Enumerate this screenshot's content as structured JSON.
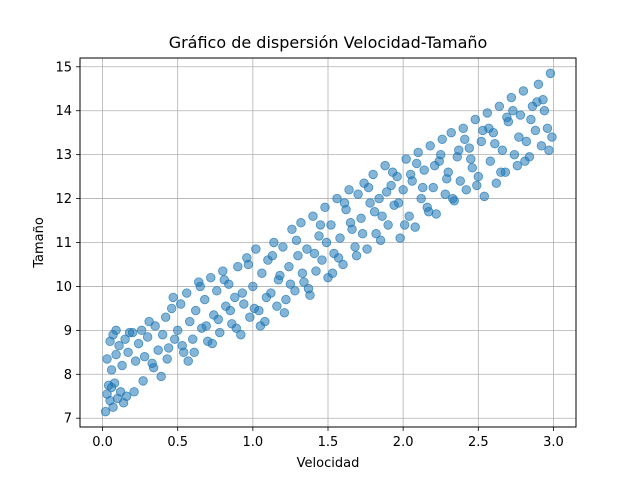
{
  "chart_data": {
    "type": "scatter",
    "title": "Gráfico de dispersión Velocidad-Tamaño",
    "xlabel": "Velocidad",
    "ylabel": "Tamaño",
    "xlim": [
      -0.15,
      3.15
    ],
    "ylim": [
      6.8,
      15.2
    ],
    "xticks": [
      0.0,
      0.5,
      1.0,
      1.5,
      2.0,
      2.5,
      3.0
    ],
    "xtick_labels": [
      "0.0",
      "0.5",
      "1.0",
      "1.5",
      "2.0",
      "2.5",
      "3.0"
    ],
    "yticks": [
      7,
      8,
      9,
      10,
      11,
      12,
      13,
      14,
      15
    ],
    "ytick_labels": [
      "7",
      "8",
      "9",
      "10",
      "11",
      "12",
      "13",
      "14",
      "15"
    ],
    "grid": true,
    "marker_color": "#1f77b4",
    "marker_alpha": 0.55,
    "series": [
      {
        "points": [
          [
            0.02,
            7.15
          ],
          [
            0.03,
            7.55
          ],
          [
            0.04,
            7.75
          ],
          [
            0.05,
            7.4
          ],
          [
            0.06,
            7.7
          ],
          [
            0.07,
            7.25
          ],
          [
            0.08,
            7.8
          ],
          [
            0.1,
            7.45
          ],
          [
            0.12,
            7.6
          ],
          [
            0.14,
            7.35
          ],
          [
            0.16,
            7.5
          ],
          [
            0.03,
            8.35
          ],
          [
            0.05,
            8.75
          ],
          [
            0.07,
            8.9
          ],
          [
            0.09,
            8.45
          ],
          [
            0.11,
            8.65
          ],
          [
            0.13,
            8.2
          ],
          [
            0.15,
            8.8
          ],
          [
            0.17,
            8.5
          ],
          [
            0.2,
            8.95
          ],
          [
            0.22,
            8.3
          ],
          [
            0.24,
            8.7
          ],
          [
            0.26,
            9.0
          ],
          [
            0.28,
            8.4
          ],
          [
            0.3,
            8.85
          ],
          [
            0.33,
            8.25
          ],
          [
            0.35,
            9.1
          ],
          [
            0.37,
            8.55
          ],
          [
            0.4,
            8.9
          ],
          [
            0.42,
            9.3
          ],
          [
            0.44,
            8.6
          ],
          [
            0.46,
            9.5
          ],
          [
            0.48,
            8.8
          ],
          [
            0.5,
            9.0
          ],
          [
            0.52,
            9.6
          ],
          [
            0.54,
            8.5
          ],
          [
            0.56,
            9.85
          ],
          [
            0.58,
            9.2
          ],
          [
            0.6,
            8.8
          ],
          [
            0.62,
            9.45
          ],
          [
            0.64,
            10.1
          ],
          [
            0.66,
            9.05
          ],
          [
            0.68,
            9.7
          ],
          [
            0.7,
            8.75
          ],
          [
            0.72,
            10.2
          ],
          [
            0.74,
            9.35
          ],
          [
            0.76,
            9.9
          ],
          [
            0.78,
            8.95
          ],
          [
            0.8,
            10.35
          ],
          [
            0.82,
            9.55
          ],
          [
            0.84,
            10.05
          ],
          [
            0.86,
            9.15
          ],
          [
            0.88,
            9.75
          ],
          [
            0.9,
            10.45
          ],
          [
            0.92,
            8.9
          ],
          [
            0.94,
            9.6
          ],
          [
            0.96,
            10.65
          ],
          [
            0.98,
            9.3
          ],
          [
            1.0,
            10.0
          ],
          [
            1.02,
            10.85
          ],
          [
            1.04,
            9.45
          ],
          [
            1.06,
            10.3
          ],
          [
            1.08,
            9.2
          ],
          [
            1.1,
            10.6
          ],
          [
            1.12,
            9.85
          ],
          [
            1.14,
            11.0
          ],
          [
            1.16,
            9.55
          ],
          [
            1.18,
            10.25
          ],
          [
            1.2,
            10.9
          ],
          [
            1.22,
            9.7
          ],
          [
            1.24,
            10.45
          ],
          [
            1.26,
            11.3
          ],
          [
            1.28,
            9.9
          ],
          [
            1.3,
            10.7
          ],
          [
            1.32,
            11.45
          ],
          [
            1.34,
            10.1
          ],
          [
            1.36,
            10.85
          ],
          [
            1.38,
            9.8
          ],
          [
            1.4,
            11.6
          ],
          [
            1.42,
            10.35
          ],
          [
            1.44,
            11.15
          ],
          [
            1.46,
            10.6
          ],
          [
            1.48,
            11.8
          ],
          [
            1.5,
            10.2
          ],
          [
            1.52,
            11.4
          ],
          [
            1.54,
            10.75
          ],
          [
            1.56,
            12.0
          ],
          [
            1.58,
            11.1
          ],
          [
            1.6,
            10.5
          ],
          [
            1.62,
            11.75
          ],
          [
            1.64,
            12.2
          ],
          [
            1.66,
            11.3
          ],
          [
            1.68,
            10.9
          ],
          [
            1.7,
            12.1
          ],
          [
            1.72,
            11.55
          ],
          [
            1.74,
            12.35
          ],
          [
            1.76,
            10.85
          ],
          [
            1.78,
            11.9
          ],
          [
            1.8,
            12.55
          ],
          [
            1.82,
            11.2
          ],
          [
            1.84,
            12.0
          ],
          [
            1.86,
            11.6
          ],
          [
            1.88,
            12.75
          ],
          [
            1.9,
            11.4
          ],
          [
            1.92,
            12.3
          ],
          [
            1.94,
            11.85
          ],
          [
            1.96,
            12.5
          ],
          [
            1.98,
            11.1
          ],
          [
            2.0,
            12.2
          ],
          [
            2.02,
            12.9
          ],
          [
            2.04,
            11.6
          ],
          [
            2.06,
            12.4
          ],
          [
            2.08,
            11.35
          ],
          [
            2.1,
            13.05
          ],
          [
            2.12,
            12.0
          ],
          [
            2.14,
            12.65
          ],
          [
            2.16,
            11.8
          ],
          [
            2.18,
            13.2
          ],
          [
            2.2,
            12.25
          ],
          [
            2.22,
            11.65
          ],
          [
            2.24,
            12.85
          ],
          [
            2.26,
            13.35
          ],
          [
            2.28,
            12.1
          ],
          [
            2.3,
            12.6
          ],
          [
            2.32,
            13.5
          ],
          [
            2.34,
            11.95
          ],
          [
            2.36,
            12.95
          ],
          [
            2.38,
            12.4
          ],
          [
            2.4,
            13.6
          ],
          [
            2.42,
            12.2
          ],
          [
            2.44,
            13.15
          ],
          [
            2.46,
            12.7
          ],
          [
            2.48,
            13.8
          ],
          [
            2.5,
            12.5
          ],
          [
            2.52,
            13.3
          ],
          [
            2.54,
            12.05
          ],
          [
            2.56,
            13.95
          ],
          [
            2.58,
            12.85
          ],
          [
            2.6,
            13.5
          ],
          [
            2.62,
            12.35
          ],
          [
            2.64,
            14.1
          ],
          [
            2.66,
            13.1
          ],
          [
            2.68,
            12.6
          ],
          [
            2.7,
            13.75
          ],
          [
            2.72,
            14.3
          ],
          [
            2.74,
            13.0
          ],
          [
            2.76,
            12.75
          ],
          [
            2.78,
            13.9
          ],
          [
            2.8,
            14.45
          ],
          [
            2.82,
            13.3
          ],
          [
            2.84,
            12.95
          ],
          [
            2.86,
            14.1
          ],
          [
            2.88,
            13.55
          ],
          [
            2.9,
            14.6
          ],
          [
            2.92,
            13.2
          ],
          [
            2.94,
            14.0
          ],
          [
            2.96,
            13.6
          ],
          [
            2.98,
            14.85
          ],
          [
            2.99,
            13.4
          ],
          [
            0.06,
            8.1
          ],
          [
            0.18,
            8.95
          ],
          [
            0.27,
            7.85
          ],
          [
            0.34,
            8.15
          ],
          [
            0.43,
            8.35
          ],
          [
            0.53,
            8.65
          ],
          [
            0.61,
            8.5
          ],
          [
            0.69,
            9.1
          ],
          [
            0.77,
            9.25
          ],
          [
            0.85,
            9.45
          ],
          [
            0.93,
            9.85
          ],
          [
            1.01,
            9.5
          ],
          [
            1.09,
            9.75
          ],
          [
            1.17,
            10.15
          ],
          [
            1.25,
            10.05
          ],
          [
            1.33,
            10.3
          ],
          [
            1.41,
            10.75
          ],
          [
            1.49,
            11.0
          ],
          [
            1.57,
            10.65
          ],
          [
            1.65,
            11.45
          ],
          [
            1.73,
            11.2
          ],
          [
            1.81,
            11.7
          ],
          [
            1.89,
            12.15
          ],
          [
            1.97,
            11.9
          ],
          [
            2.05,
            12.55
          ],
          [
            2.13,
            12.25
          ],
          [
            2.21,
            12.75
          ],
          [
            2.29,
            12.45
          ],
          [
            2.37,
            13.1
          ],
          [
            2.45,
            12.9
          ],
          [
            2.53,
            13.55
          ],
          [
            2.61,
            13.25
          ],
          [
            2.69,
            13.85
          ],
          [
            2.77,
            13.4
          ],
          [
            2.85,
            13.8
          ],
          [
            2.93,
            14.25
          ],
          [
            0.09,
            9.0
          ],
          [
            0.21,
            7.6
          ],
          [
            0.31,
            9.2
          ],
          [
            0.39,
            7.95
          ],
          [
            0.47,
            9.75
          ],
          [
            0.57,
            8.3
          ],
          [
            0.65,
            10.0
          ],
          [
            0.73,
            8.7
          ],
          [
            0.81,
            10.15
          ],
          [
            0.89,
            9.05
          ],
          [
            0.97,
            10.5
          ],
          [
            1.05,
            9.1
          ],
          [
            1.13,
            10.7
          ],
          [
            1.21,
            9.4
          ],
          [
            1.29,
            11.05
          ],
          [
            1.37,
            9.95
          ],
          [
            1.45,
            11.4
          ],
          [
            1.53,
            10.3
          ],
          [
            1.61,
            11.9
          ],
          [
            1.69,
            10.7
          ],
          [
            1.77,
            12.25
          ],
          [
            1.85,
            11.05
          ],
          [
            1.93,
            12.6
          ],
          [
            2.01,
            11.4
          ],
          [
            2.09,
            12.8
          ],
          [
            2.17,
            11.7
          ],
          [
            2.25,
            13.0
          ],
          [
            2.33,
            12.0
          ],
          [
            2.41,
            13.35
          ],
          [
            2.49,
            12.3
          ],
          [
            2.57,
            13.6
          ],
          [
            2.65,
            12.6
          ],
          [
            2.73,
            14.0
          ],
          [
            2.81,
            12.85
          ],
          [
            2.89,
            14.2
          ],
          [
            2.97,
            13.1
          ]
        ]
      }
    ]
  }
}
